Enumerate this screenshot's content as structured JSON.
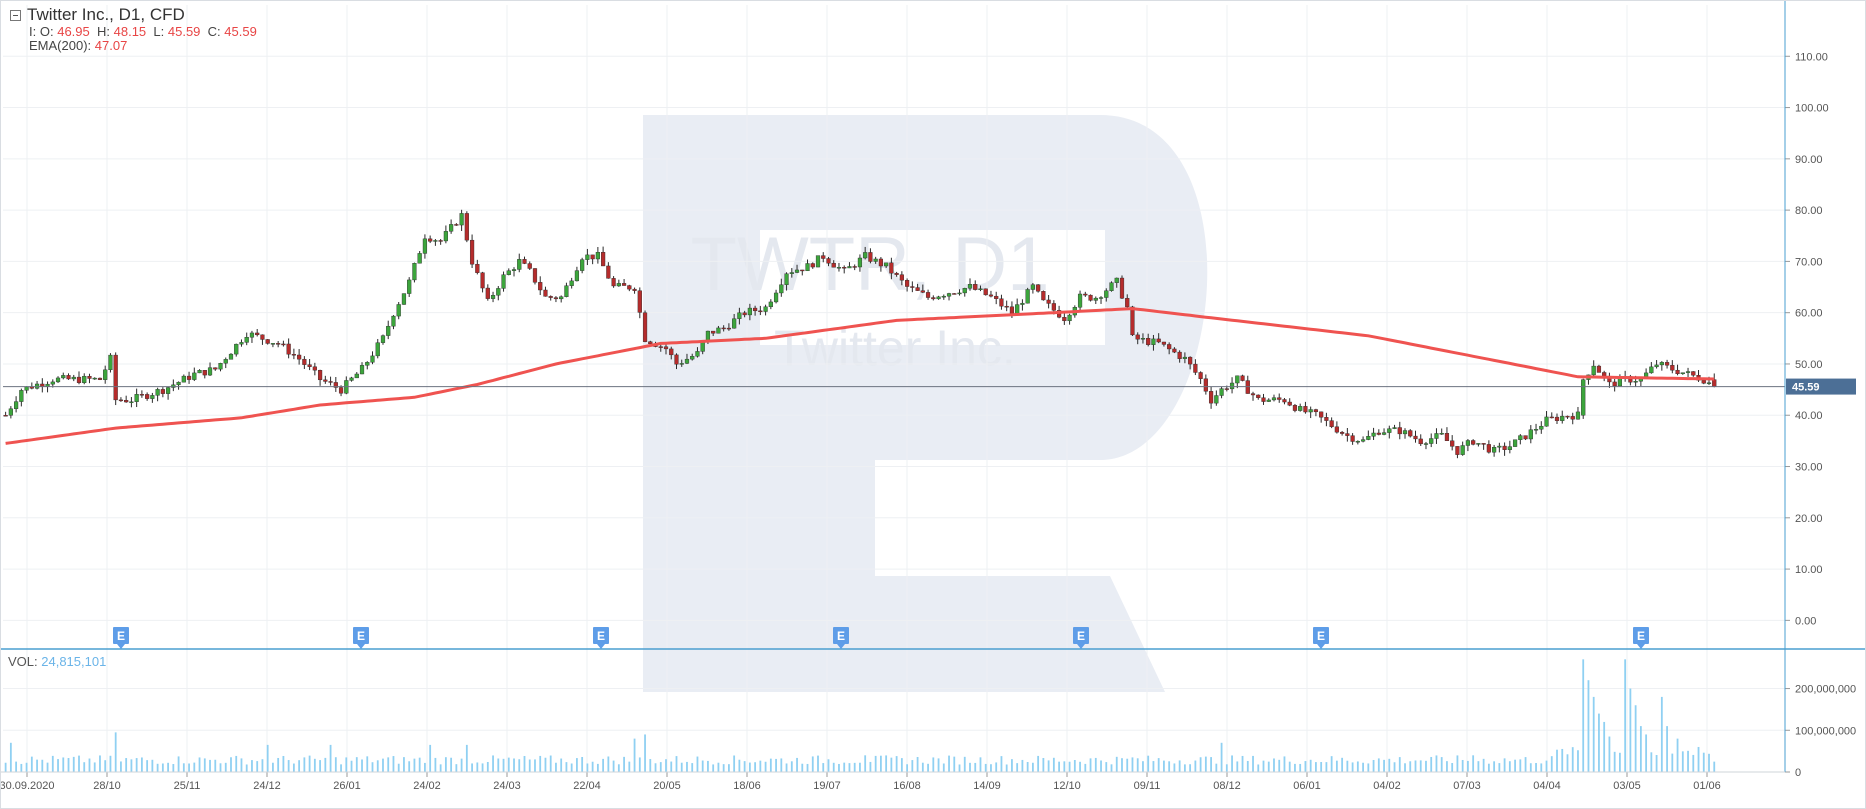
{
  "legend": {
    "instrument": "Twitter Inc.,",
    "timeframe": "D1,",
    "type": "CFD",
    "ohlc": {
      "prefix": "I:",
      "o_label": "O:",
      "o": "46.95",
      "h_label": "H:",
      "h": "48.15",
      "l_label": "L:",
      "l": "45.59",
      "c_label": "C:",
      "c": "45.59"
    },
    "ema_label": "EMA(200):",
    "ema_value": "47.07",
    "vol_label": "VOL:",
    "vol_value": "24,815,101"
  },
  "watermark": {
    "line1": "TWTR, D1",
    "line2": "Twitter Inc."
  },
  "colors": {
    "bull": "#3ca53c",
    "bear": "#b52c2c",
    "ema": "#ef5350",
    "volume": "#8fd0f2",
    "axis": "#4a9fd0",
    "price_tag": "#4c6f96",
    "earnings": "#5e9de8",
    "watermark": "#e9edf4",
    "grid": "#eef0f3"
  },
  "chart_data": {
    "type": "candlestick",
    "price_axis": {
      "ylim": [
        -5,
        120
      ],
      "ticks": [
        "110.00",
        "100.00",
        "90.00",
        "80.00",
        "70.00",
        "60.00",
        "50.00",
        "40.00",
        "30.00",
        "20.00",
        "10.00",
        "0.00"
      ]
    },
    "volume_axis": {
      "ylim": [
        0,
        290000000
      ],
      "ticks": [
        "200,000,000",
        "100,000,000",
        "0"
      ]
    },
    "x_labels": [
      "30.09.2020",
      "28/10",
      "25/11",
      "24/12",
      "26/01",
      "24/02",
      "24/03",
      "22/04",
      "20/05",
      "18/06",
      "19/07",
      "16/08",
      "14/09",
      "12/10",
      "09/11",
      "08/12",
      "06/01",
      "04/02",
      "07/03",
      "04/04",
      "03/05",
      "01/06"
    ],
    "current_price": "45.59",
    "earnings_marker": "E",
    "earnings_after_x_label": [
      "28/10",
      "26/01",
      "22/04",
      "19/07",
      "12/10",
      "06/01",
      "03/05"
    ],
    "price_anchors": [
      [
        0,
        40
      ],
      [
        3,
        45
      ],
      [
        9,
        47
      ],
      [
        18,
        47
      ],
      [
        20,
        51
      ],
      [
        21,
        43
      ],
      [
        24,
        43
      ],
      [
        30,
        45
      ],
      [
        36,
        48
      ],
      [
        40,
        49
      ],
      [
        46,
        56
      ],
      [
        52,
        54
      ],
      [
        56,
        51
      ],
      [
        60,
        47
      ],
      [
        64,
        45
      ],
      [
        68,
        49
      ],
      [
        72,
        55
      ],
      [
        74,
        60
      ],
      [
        77,
        66
      ],
      [
        80,
        75
      ],
      [
        83,
        74
      ],
      [
        87,
        79
      ],
      [
        89,
        70
      ],
      [
        92,
        62
      ],
      [
        95,
        67
      ],
      [
        98,
        70
      ],
      [
        100,
        68
      ],
      [
        103,
        63
      ],
      [
        106,
        63
      ],
      [
        110,
        71
      ],
      [
        113,
        71
      ],
      [
        116,
        65
      ],
      [
        120,
        65
      ],
      [
        122,
        55
      ],
      [
        126,
        53
      ],
      [
        128,
        50
      ],
      [
        132,
        52
      ],
      [
        134,
        56
      ],
      [
        137,
        57
      ],
      [
        141,
        60
      ],
      [
        145,
        61
      ],
      [
        149,
        68
      ],
      [
        153,
        69
      ],
      [
        156,
        71
      ],
      [
        160,
        68
      ],
      [
        164,
        71
      ],
      [
        168,
        69
      ],
      [
        172,
        65
      ],
      [
        176,
        63
      ],
      [
        180,
        64
      ],
      [
        184,
        65
      ],
      [
        188,
        63
      ],
      [
        192,
        60
      ],
      [
        196,
        65
      ],
      [
        198,
        62
      ],
      [
        202,
        59
      ],
      [
        205,
        63
      ],
      [
        208,
        63
      ],
      [
        212,
        66
      ],
      [
        214,
        61
      ],
      [
        215,
        55
      ],
      [
        220,
        54
      ],
      [
        225,
        51
      ],
      [
        228,
        47
      ],
      [
        230,
        43
      ],
      [
        232,
        45
      ],
      [
        235,
        47
      ],
      [
        239,
        43
      ],
      [
        244,
        43
      ],
      [
        247,
        41
      ],
      [
        250,
        40
      ],
      [
        253,
        38
      ],
      [
        256,
        36
      ],
      [
        259,
        35
      ],
      [
        262,
        37
      ],
      [
        266,
        37
      ],
      [
        270,
        35
      ],
      [
        274,
        36
      ],
      [
        277,
        33
      ],
      [
        280,
        35
      ],
      [
        284,
        33
      ],
      [
        287,
        34
      ],
      [
        290,
        36
      ],
      [
        294,
        39
      ],
      [
        298,
        40
      ],
      [
        300,
        40
      ],
      [
        301,
        47
      ],
      [
        303,
        50
      ],
      [
        306,
        46
      ],
      [
        309,
        47
      ],
      [
        312,
        47
      ],
      [
        315,
        50
      ],
      [
        318,
        49
      ],
      [
        321,
        48
      ],
      [
        324,
        47
      ],
      [
        326,
        45.6
      ]
    ],
    "gaps": [
      [
        21,
        22
      ],
      [
        121,
        122
      ],
      [
        300,
        301
      ],
      [
        325,
        326
      ]
    ],
    "ema_anchors": [
      [
        0,
        34.5
      ],
      [
        21,
        37.5
      ],
      [
        45,
        39.5
      ],
      [
        60,
        42
      ],
      [
        78,
        43.5
      ],
      [
        90,
        46
      ],
      [
        105,
        50
      ],
      [
        125,
        54
      ],
      [
        145,
        55
      ],
      [
        170,
        58.5
      ],
      [
        200,
        60
      ],
      [
        215,
        60.8
      ],
      [
        230,
        59
      ],
      [
        260,
        55.5
      ],
      [
        280,
        51.5
      ],
      [
        300,
        47.5
      ],
      [
        326,
        47.07
      ]
    ],
    "volume_spikes": [
      [
        1,
        70000000
      ],
      [
        21,
        95000000
      ],
      [
        50,
        65000000
      ],
      [
        62,
        65000000
      ],
      [
        81,
        65000000
      ],
      [
        88,
        65000000
      ],
      [
        120,
        80000000
      ],
      [
        122,
        90000000
      ],
      [
        164,
        40000000
      ],
      [
        215,
        35000000
      ],
      [
        232,
        70000000
      ],
      [
        280,
        40000000
      ],
      [
        301,
        270000000
      ],
      [
        302,
        220000000
      ],
      [
        303,
        180000000
      ],
      [
        304,
        140000000
      ],
      [
        305,
        120000000
      ],
      [
        306,
        85000000
      ],
      [
        309,
        270000000
      ],
      [
        310,
        200000000
      ],
      [
        311,
        160000000
      ],
      [
        312,
        110000000
      ],
      [
        313,
        90000000
      ],
      [
        316,
        180000000
      ],
      [
        317,
        110000000
      ],
      [
        319,
        80000000
      ],
      [
        323,
        60000000
      ]
    ]
  }
}
